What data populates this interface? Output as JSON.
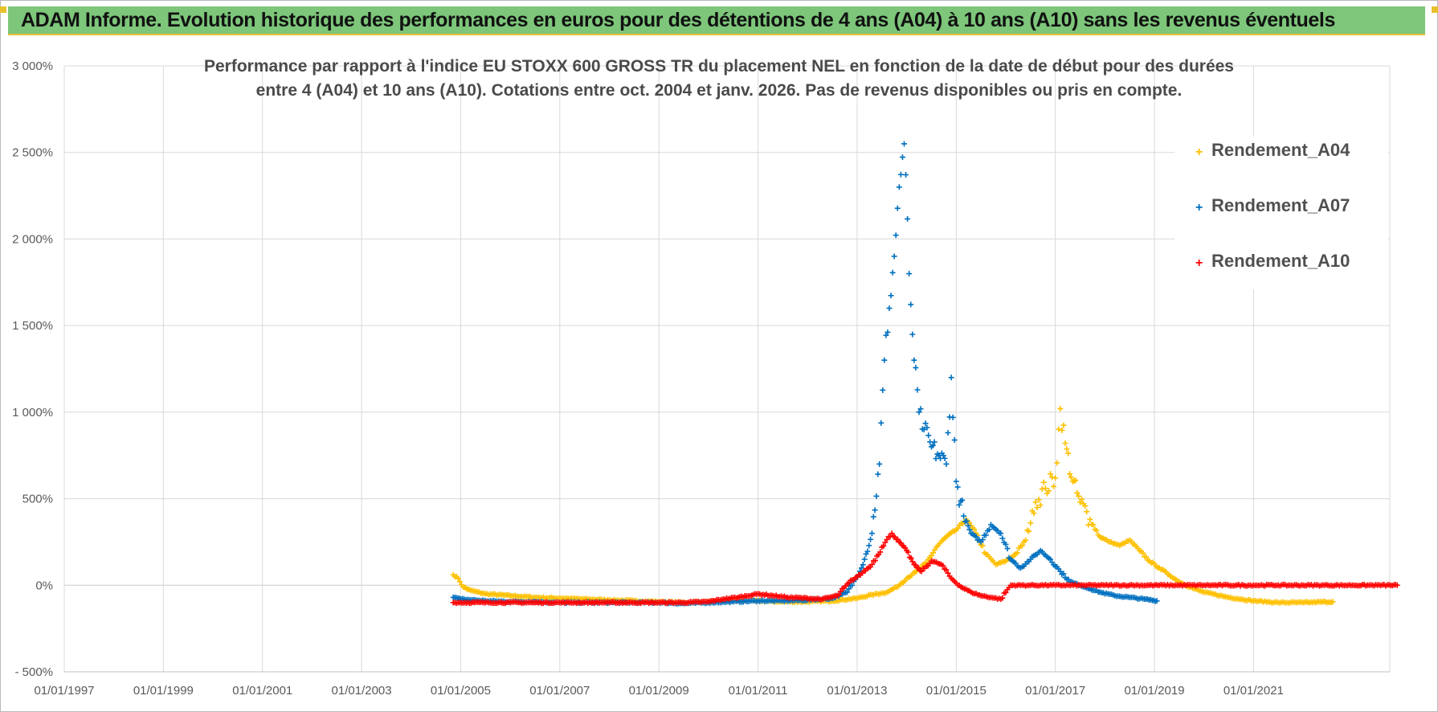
{
  "header": {
    "title": "ADAM Informe. Evolution historique des performances en euros pour des détentions de 4 ans (A04) à 10 ans (A10) sans les revenus éventuels",
    "background": "#7dc67a",
    "accent": "#e8c23a"
  },
  "chart_data": {
    "type": "scatter",
    "title_line1": "Performance par rapport à l'indice EU STOXX 600 GROSS TR  du placement NEL en fonction de la date de début pour des durées",
    "title_line2": "entre 4 (A04) et 10 ans (A10). Cotations entre oct. 2004 et janv. 2026. Pas de revenus disponibles ou pris en compte.",
    "xlabel": "",
    "ylabel": "",
    "x_range": [
      "1997-01-01",
      "2023-10-01"
    ],
    "ylim": [
      -500,
      3000
    ],
    "y_ticks": [
      3000,
      2500,
      2000,
      1500,
      1000,
      500,
      0,
      -500
    ],
    "y_tick_labels": [
      "3 000%",
      "2 500%",
      "2 000%",
      "1 500%",
      "1 000%",
      "500%",
      "0%",
      "- 500%"
    ],
    "x_ticks": [
      "1997-01-01",
      "1999-01-01",
      "2001-01-01",
      "2003-01-01",
      "2005-01-01",
      "2007-01-01",
      "2009-01-01",
      "2011-01-01",
      "2013-01-01",
      "2015-01-01",
      "2017-01-01",
      "2019-01-01",
      "2021-01-01"
    ],
    "x_tick_labels": [
      "01/01/1997",
      "01/01/1999",
      "01/01/2001",
      "01/01/2003",
      "01/01/2005",
      "01/01/2007",
      "01/01/2009",
      "01/01/2011",
      "01/01/2013",
      "01/01/2015",
      "01/01/2017",
      "01/01/2019",
      "01/01/2021"
    ],
    "grid": true,
    "legend_position": "top-right",
    "marker": "+",
    "series": [
      {
        "name": "Rendement_A04",
        "color": "#ffc000",
        "x": [
          2004.85,
          2004.95,
          2005.05,
          2005.2,
          2005.5,
          2006.0,
          2006.5,
          2007.0,
          2007.5,
          2008.0,
          2008.5,
          2009.0,
          2009.5,
          2010.0,
          2010.5,
          2011.0,
          2011.5,
          2012.0,
          2012.5,
          2013.0,
          2013.3,
          2013.6,
          2013.8,
          2014.0,
          2014.2,
          2014.4,
          2014.6,
          2014.8,
          2015.0,
          2015.2,
          2015.4,
          2015.6,
          2015.8,
          2016.0,
          2016.2,
          2016.4,
          2016.6,
          2016.8,
          2017.0,
          2017.1,
          2017.2,
          2017.35,
          2017.5,
          2017.7,
          2017.9,
          2018.1,
          2018.3,
          2018.5,
          2018.7,
          2018.9,
          2019.1,
          2019.3,
          2019.5,
          2019.8,
          2020.0,
          2020.5,
          2021.0,
          2021.5,
          2022.0,
          2022.6
        ],
        "y": [
          60,
          40,
          -10,
          -30,
          -50,
          -60,
          -70,
          -75,
          -80,
          -85,
          -90,
          -95,
          -100,
          -95,
          -90,
          -90,
          -95,
          -95,
          -90,
          -75,
          -55,
          -40,
          -10,
          40,
          80,
          130,
          220,
          280,
          320,
          380,
          300,
          180,
          120,
          140,
          180,
          260,
          480,
          560,
          620,
          1020,
          820,
          600,
          480,
          380,
          280,
          250,
          230,
          260,
          200,
          140,
          100,
          60,
          20,
          -20,
          -40,
          -70,
          -90,
          -100,
          -100,
          -95
        ]
      },
      {
        "name": "Rendement_A07",
        "color": "#0070c0",
        "x": [
          2004.85,
          2005.0,
          2005.5,
          2006.0,
          2006.5,
          2007.0,
          2007.5,
          2008.0,
          2008.5,
          2009.0,
          2009.5,
          2010.0,
          2010.5,
          2011.0,
          2011.5,
          2012.0,
          2012.5,
          2012.8,
          2013.0,
          2013.15,
          2013.3,
          2013.45,
          2013.55,
          2013.65,
          2013.75,
          2013.85,
          2013.95,
          2014.05,
          2014.15,
          2014.25,
          2014.35,
          2014.5,
          2014.65,
          2014.8,
          2014.9,
          2015.0,
          2015.15,
          2015.3,
          2015.5,
          2015.7,
          2015.9,
          2016.1,
          2016.3,
          2016.5,
          2016.7,
          2016.9,
          2017.1,
          2017.3,
          2017.5,
          2017.7,
          2017.9,
          2018.2,
          2018.5,
          2018.8,
          2019.05
        ],
        "y": [
          -70,
          -80,
          -90,
          -95,
          -95,
          -100,
          -100,
          -100,
          -100,
          -100,
          -105,
          -100,
          -95,
          -90,
          -90,
          -85,
          -75,
          -40,
          50,
          150,
          300,
          700,
          1300,
          1600,
          1900,
          2300,
          2550,
          1800,
          1300,
          1000,
          900,
          800,
          750,
          700,
          1200,
          600,
          400,
          300,
          250,
          350,
          300,
          150,
          100,
          150,
          200,
          150,
          80,
          20,
          0,
          -20,
          -40,
          -60,
          -70,
          -80,
          -90
        ]
      },
      {
        "name": "Rendement_A10",
        "color": "#ff0000",
        "x": [
          2004.85,
          2005.5,
          2006.0,
          2006.5,
          2007.0,
          2007.5,
          2008.0,
          2008.5,
          2009.0,
          2009.5,
          2010.0,
          2010.3,
          2010.6,
          2011.0,
          2011.3,
          2011.6,
          2012.0,
          2012.3,
          2012.6,
          2012.9,
          2013.1,
          2013.3,
          2013.5,
          2013.7,
          2013.85,
          2014.0,
          2014.15,
          2014.3,
          2014.5,
          2014.7,
          2014.9,
          2015.1,
          2015.3,
          2015.5,
          2015.7,
          2015.9,
          2016.1,
          2016.5,
          2017.0,
          2017.5,
          2018.0,
          2018.5,
          2019.0,
          2019.5,
          2020.0,
          2020.5,
          2021.0,
          2021.5,
          2022.0,
          2022.5,
          2023.0,
          2023.5,
          2023.9
        ],
        "y": [
          -100,
          -100,
          -100,
          -100,
          -100,
          -100,
          -100,
          -100,
          -100,
          -100,
          -95,
          -80,
          -70,
          -50,
          -60,
          -70,
          -75,
          -80,
          -60,
          30,
          70,
          120,
          220,
          300,
          250,
          200,
          120,
          80,
          140,
          120,
          40,
          -10,
          -40,
          -60,
          -70,
          -80,
          0,
          0,
          0,
          0,
          0,
          0,
          0,
          0,
          0,
          0,
          0,
          0,
          0,
          0,
          0,
          0,
          0
        ]
      }
    ]
  }
}
